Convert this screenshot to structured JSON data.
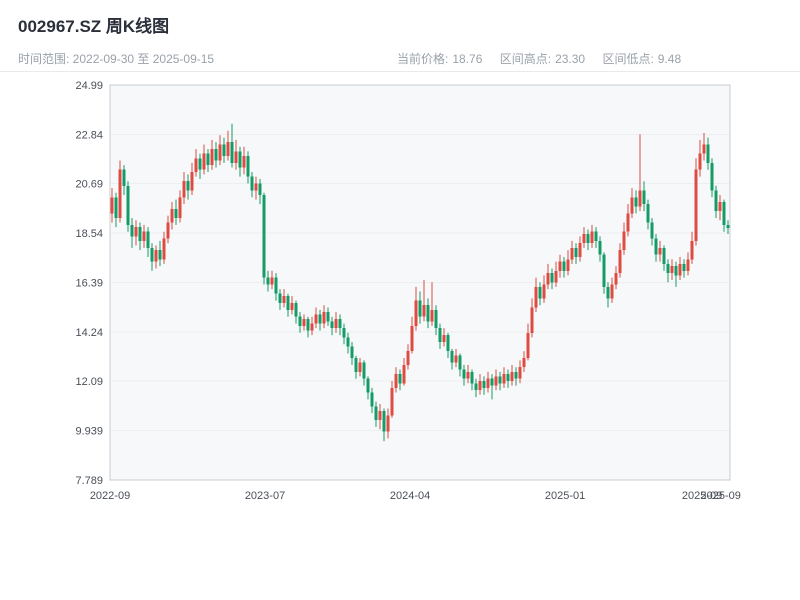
{
  "header": {
    "title": "002967.SZ 周K线图",
    "subtitle_left": "时间范围: 2022-09-30 至 2025-09-15",
    "stats": [
      {
        "label": "当前价格:",
        "value": "18.76"
      },
      {
        "label": "区间高点:",
        "value": "23.30"
      },
      {
        "label": "区间低点:",
        "value": "9.48"
      }
    ]
  },
  "colors": {
    "up": "#dd4b43",
    "down": "#149b68",
    "plot_bg": "#f7f8f9",
    "plot_border": "#c9ced4",
    "grid": "#eceef1",
    "axis_text": "#4a4f57",
    "title_text": "#2b2f3a",
    "subtitle_text": "#9aa1a9"
  },
  "chart_data": {
    "type": "candlestick",
    "title": "002967.SZ 周K线图",
    "interval": "weekly",
    "x_range": [
      "2022-09-30",
      "2025-09-15"
    ],
    "current_price": 18.76,
    "range_high": 23.3,
    "range_low": 9.48,
    "y_min": 7.789,
    "y_max": 24.99,
    "y_ticks": [
      "24.99",
      "22.84",
      "20.69",
      "18.54",
      "16.39",
      "14.24",
      "12.09",
      "9.939",
      "7.789"
    ],
    "x_ticks": [
      {
        "label": "2022-09",
        "pos": 0.0
      },
      {
        "label": "2023-07",
        "pos": 0.25
      },
      {
        "label": "2024-04",
        "pos": 0.484
      },
      {
        "label": "2025-01",
        "pos": 0.734
      },
      {
        "label": "2025-09",
        "pos": 0.955
      },
      {
        "label": "2025-09",
        "pos": 0.985
      }
    ],
    "ohlc_format": [
      "open",
      "high",
      "low",
      "close"
    ],
    "candles": [
      [
        19.4,
        20.5,
        19.0,
        20.1
      ],
      [
        20.1,
        20.3,
        18.8,
        19.2
      ],
      [
        19.2,
        21.7,
        19.0,
        21.3
      ],
      [
        21.3,
        21.5,
        20.2,
        20.6
      ],
      [
        20.6,
        20.8,
        18.6,
        18.9
      ],
      [
        18.9,
        19.2,
        17.9,
        18.4
      ],
      [
        18.4,
        19.1,
        18.0,
        18.8
      ],
      [
        18.8,
        19.0,
        17.8,
        18.2
      ],
      [
        18.2,
        18.9,
        17.9,
        18.6
      ],
      [
        18.6,
        18.8,
        17.5,
        17.9
      ],
      [
        17.9,
        18.1,
        16.9,
        17.3
      ],
      [
        17.3,
        18.0,
        17.0,
        17.8
      ],
      [
        17.8,
        18.2,
        17.1,
        17.4
      ],
      [
        17.4,
        18.6,
        17.2,
        18.3
      ],
      [
        18.3,
        19.3,
        18.1,
        19.0
      ],
      [
        19.0,
        19.9,
        18.7,
        19.6
      ],
      [
        19.6,
        20.0,
        18.9,
        19.2
      ],
      [
        19.2,
        20.4,
        19.0,
        20.1
      ],
      [
        20.1,
        21.2,
        19.8,
        20.8
      ],
      [
        20.8,
        21.1,
        20.0,
        20.4
      ],
      [
        20.4,
        21.6,
        20.2,
        21.2
      ],
      [
        21.2,
        22.2,
        21.0,
        21.8
      ],
      [
        21.8,
        22.0,
        20.9,
        21.3
      ],
      [
        21.3,
        22.4,
        21.1,
        22.0
      ],
      [
        22.0,
        22.2,
        21.2,
        21.5
      ],
      [
        21.5,
        22.6,
        21.3,
        22.2
      ],
      [
        22.2,
        22.5,
        21.4,
        21.7
      ],
      [
        21.7,
        22.8,
        21.5,
        22.4
      ],
      [
        22.4,
        22.7,
        21.6,
        21.9
      ],
      [
        21.9,
        23.0,
        21.7,
        22.5
      ],
      [
        22.5,
        23.3,
        21.4,
        21.6
      ],
      [
        21.6,
        22.6,
        21.3,
        22.1
      ],
      [
        22.1,
        22.3,
        21.0,
        21.4
      ],
      [
        21.4,
        22.3,
        21.1,
        21.9
      ],
      [
        21.9,
        22.1,
        20.7,
        21.0
      ],
      [
        21.0,
        21.2,
        20.1,
        20.4
      ],
      [
        20.4,
        21.0,
        20.0,
        20.7
      ],
      [
        20.7,
        20.9,
        19.8,
        20.2
      ],
      [
        20.2,
        20.3,
        16.3,
        16.6
      ],
      [
        16.6,
        16.9,
        16.0,
        16.3
      ],
      [
        16.3,
        16.9,
        16.1,
        16.6
      ],
      [
        16.6,
        16.8,
        15.6,
        15.9
      ],
      [
        15.9,
        16.1,
        15.2,
        15.5
      ],
      [
        15.5,
        16.1,
        15.3,
        15.8
      ],
      [
        15.8,
        15.9,
        14.9,
        15.2
      ],
      [
        15.2,
        15.8,
        15.0,
        15.5
      ],
      [
        15.5,
        15.6,
        14.6,
        14.9
      ],
      [
        14.9,
        15.1,
        14.2,
        14.5
      ],
      [
        14.5,
        15.0,
        14.3,
        14.8
      ],
      [
        14.8,
        14.9,
        14.0,
        14.3
      ],
      [
        14.3,
        14.9,
        14.1,
        14.6
      ],
      [
        14.6,
        15.3,
        14.4,
        15.0
      ],
      [
        15.0,
        15.2,
        14.3,
        14.6
      ],
      [
        14.6,
        15.4,
        14.4,
        15.1
      ],
      [
        15.1,
        15.3,
        14.5,
        14.7
      ],
      [
        14.7,
        14.9,
        14.1,
        14.4
      ],
      [
        14.4,
        15.1,
        14.2,
        14.8
      ],
      [
        14.8,
        15.0,
        14.1,
        14.4
      ],
      [
        14.4,
        14.6,
        13.7,
        14.0
      ],
      [
        14.0,
        14.2,
        13.3,
        13.6
      ],
      [
        13.6,
        13.8,
        12.8,
        13.1
      ],
      [
        13.1,
        13.2,
        12.2,
        12.5
      ],
      [
        12.5,
        13.1,
        12.3,
        12.9
      ],
      [
        12.9,
        13.0,
        11.9,
        12.2
      ],
      [
        12.2,
        12.3,
        11.3,
        11.6
      ],
      [
        11.6,
        11.8,
        10.7,
        11.0
      ],
      [
        11.0,
        11.2,
        10.1,
        10.4
      ],
      [
        10.4,
        11.1,
        10.0,
        10.8
      ],
      [
        10.8,
        10.9,
        9.48,
        9.9
      ],
      [
        9.9,
        10.9,
        9.6,
        10.6
      ],
      [
        10.6,
        12.1,
        10.5,
        11.8
      ],
      [
        11.8,
        12.7,
        11.6,
        12.4
      ],
      [
        12.4,
        12.6,
        11.7,
        12.0
      ],
      [
        12.0,
        13.1,
        11.9,
        12.8
      ],
      [
        12.8,
        13.7,
        12.6,
        13.4
      ],
      [
        13.4,
        14.9,
        13.3,
        14.5
      ],
      [
        14.5,
        16.2,
        14.3,
        15.6
      ],
      [
        15.6,
        16.0,
        14.6,
        14.9
      ],
      [
        14.9,
        16.5,
        14.7,
        15.4
      ],
      [
        15.4,
        15.7,
        14.4,
        14.7
      ],
      [
        14.7,
        16.4,
        14.5,
        15.2
      ],
      [
        15.2,
        15.4,
        14.1,
        14.4
      ],
      [
        14.4,
        14.6,
        13.5,
        13.8
      ],
      [
        13.8,
        14.4,
        13.6,
        14.1
      ],
      [
        14.1,
        14.2,
        13.1,
        13.4
      ],
      [
        13.4,
        13.5,
        12.6,
        12.9
      ],
      [
        12.9,
        13.5,
        12.7,
        13.2
      ],
      [
        13.2,
        13.3,
        12.3,
        12.6
      ],
      [
        12.6,
        12.8,
        11.9,
        12.2
      ],
      [
        12.2,
        12.8,
        12.0,
        12.5
      ],
      [
        12.5,
        12.6,
        11.7,
        12.0
      ],
      [
        12.0,
        12.2,
        11.4,
        11.7
      ],
      [
        11.7,
        12.4,
        11.5,
        12.1
      ],
      [
        12.1,
        12.3,
        11.5,
        11.8
      ],
      [
        11.8,
        12.5,
        11.6,
        12.2
      ],
      [
        12.2,
        12.4,
        11.3,
        11.9
      ],
      [
        11.9,
        12.6,
        11.7,
        12.3
      ],
      [
        12.3,
        12.5,
        11.7,
        12.0
      ],
      [
        12.0,
        12.7,
        11.8,
        12.4
      ],
      [
        12.4,
        12.6,
        11.8,
        12.1
      ],
      [
        12.1,
        12.8,
        11.9,
        12.5
      ],
      [
        12.5,
        12.7,
        11.9,
        12.2
      ],
      [
        12.2,
        13.0,
        12.0,
        12.7
      ],
      [
        12.7,
        13.4,
        12.5,
        13.1
      ],
      [
        13.1,
        14.6,
        13.0,
        14.2
      ],
      [
        14.2,
        15.7,
        14.0,
        15.3
      ],
      [
        15.3,
        16.6,
        15.1,
        16.2
      ],
      [
        16.2,
        16.4,
        15.4,
        15.7
      ],
      [
        15.7,
        16.7,
        15.5,
        16.3
      ],
      [
        16.3,
        17.2,
        16.1,
        16.8
      ],
      [
        16.8,
        17.0,
        16.1,
        16.4
      ],
      [
        16.4,
        17.3,
        16.2,
        16.9
      ],
      [
        16.9,
        17.6,
        16.6,
        17.3
      ],
      [
        17.3,
        17.5,
        16.6,
        16.9
      ],
      [
        16.9,
        17.8,
        16.7,
        17.4
      ],
      [
        17.4,
        18.2,
        17.2,
        17.9
      ],
      [
        17.9,
        18.1,
        17.2,
        17.5
      ],
      [
        17.5,
        18.4,
        17.3,
        18.1
      ],
      [
        18.1,
        18.8,
        17.9,
        18.5
      ],
      [
        18.5,
        18.7,
        17.8,
        18.1
      ],
      [
        18.1,
        18.9,
        17.9,
        18.6
      ],
      [
        18.6,
        18.8,
        17.9,
        18.2
      ],
      [
        18.2,
        18.4,
        17.3,
        17.6
      ],
      [
        17.6,
        17.7,
        15.9,
        16.2
      ],
      [
        16.2,
        16.4,
        15.3,
        15.7
      ],
      [
        15.7,
        16.6,
        15.5,
        16.3
      ],
      [
        16.3,
        17.1,
        16.1,
        16.8
      ],
      [
        16.8,
        18.1,
        16.6,
        17.8
      ],
      [
        17.8,
        19.0,
        17.6,
        18.6
      ],
      [
        18.6,
        19.8,
        18.4,
        19.4
      ],
      [
        19.4,
        20.5,
        19.2,
        20.1
      ],
      [
        20.1,
        20.4,
        19.4,
        19.7
      ],
      [
        19.7,
        22.84,
        19.5,
        20.4
      ],
      [
        20.4,
        20.8,
        19.5,
        19.8
      ],
      [
        19.8,
        20.0,
        18.7,
        19.0
      ],
      [
        19.0,
        19.2,
        18.0,
        18.3
      ],
      [
        18.3,
        18.5,
        17.3,
        17.6
      ],
      [
        17.6,
        18.2,
        17.3,
        17.9
      ],
      [
        17.9,
        18.0,
        16.9,
        17.2
      ],
      [
        17.2,
        17.4,
        16.4,
        16.8
      ],
      [
        16.8,
        17.4,
        16.5,
        17.1
      ],
      [
        17.1,
        17.3,
        16.2,
        16.7
      ],
      [
        16.7,
        17.5,
        16.5,
        17.2
      ],
      [
        17.2,
        17.4,
        16.6,
        16.9
      ],
      [
        16.9,
        17.7,
        16.7,
        17.4
      ],
      [
        17.4,
        18.6,
        17.2,
        18.2
      ],
      [
        18.2,
        21.8,
        18.0,
        21.3
      ],
      [
        21.3,
        22.6,
        21.0,
        22.0
      ],
      [
        22.0,
        22.9,
        21.7,
        22.4
      ],
      [
        22.4,
        22.7,
        21.3,
        21.6
      ],
      [
        21.6,
        21.8,
        20.1,
        20.4
      ],
      [
        20.4,
        20.6,
        19.2,
        19.5
      ],
      [
        19.5,
        20.2,
        19.1,
        19.9
      ],
      [
        19.9,
        20.0,
        18.6,
        18.9
      ],
      [
        18.9,
        19.1,
        18.5,
        18.76
      ]
    ]
  }
}
